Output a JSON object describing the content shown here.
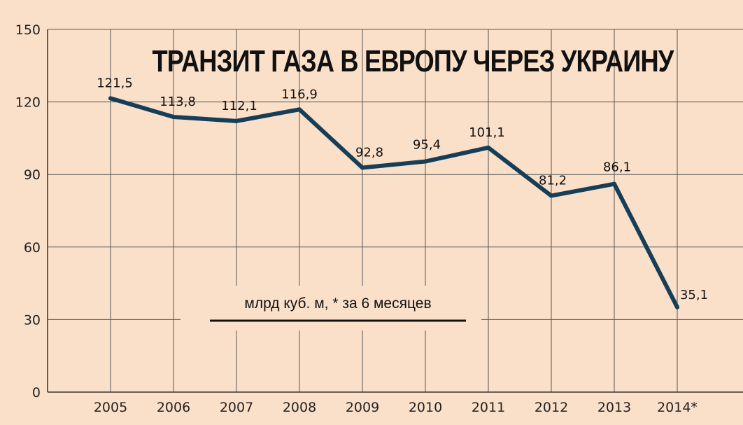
{
  "chart_data": {
    "type": "line",
    "title": "ТРАНЗИТ ГАЗА В ЕВРОПУ ЧЕРЕЗ УКРАИНУ",
    "unit_note": "млрд куб. м, * за 6 месяцев",
    "categories": [
      "2005",
      "2006",
      "2007",
      "2008",
      "2009",
      "2010",
      "2011",
      "2012",
      "2013",
      "2014*"
    ],
    "values": [
      121.5,
      113.8,
      112.1,
      116.9,
      92.8,
      95.4,
      101.1,
      81.2,
      86.1,
      35.1
    ],
    "data_labels": [
      "121,5",
      "113,8",
      "112,1",
      "116,9",
      "92,8",
      "95,4",
      "101,1",
      "81,2",
      "86,1",
      "35,1"
    ],
    "yticks": [
      "0",
      "30",
      "60",
      "90",
      "120",
      "150"
    ],
    "ylim": [
      0,
      150
    ],
    "grid": true,
    "colors": {
      "background": "#fbe0c9",
      "line": "#163e57",
      "grid": "#555555"
    }
  }
}
